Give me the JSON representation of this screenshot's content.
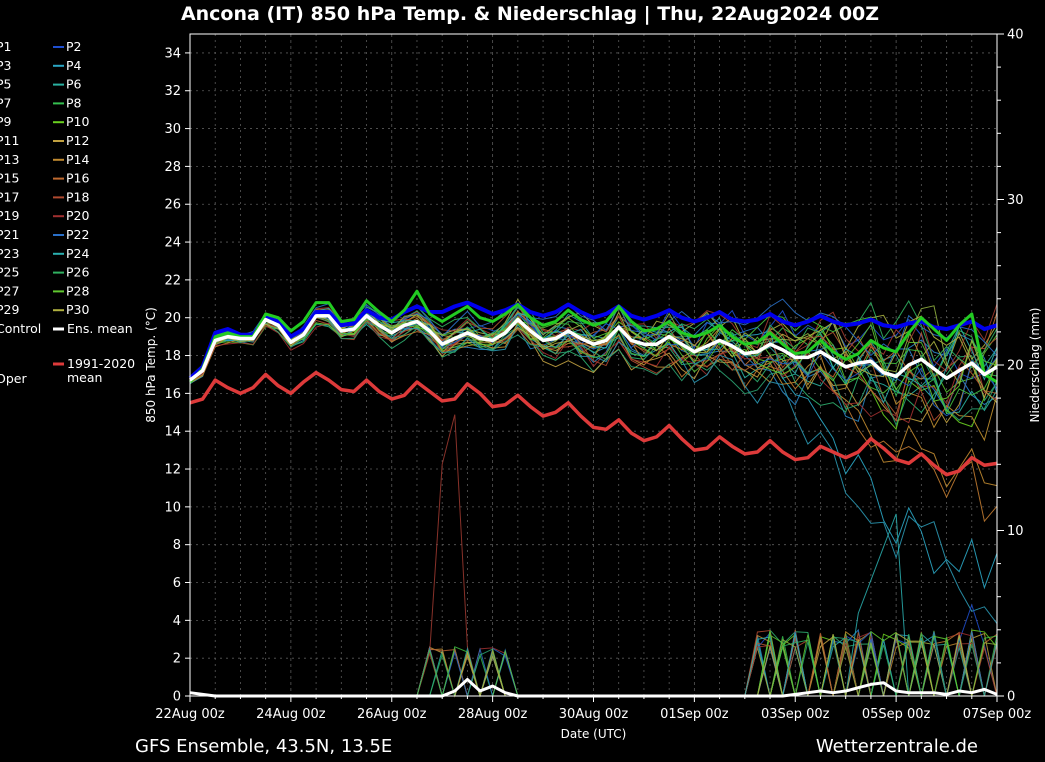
{
  "title": "Ancona  (IT)  850 hPa Temp. & Niederschlag | Thu, 22Aug2024 00Z",
  "footer_left": "GFS Ensemble, 43.5N, 13.5E",
  "footer_right": "Wetterzentrale.de",
  "colors": {
    "background": "#000000",
    "axes": "#ffffff",
    "grid": "#5a5a5a",
    "ens_mean": "#ffffff",
    "control": "#0000ee",
    "oper": "#22cc22",
    "climate_mean": "#dd3a3a"
  },
  "chart_data": {
    "type": "line",
    "xlabel": "Date (UTC)",
    "ylabel": "850 hPa Temp. (°C)",
    "y2label": "Niederschlag (mm)",
    "x_start": "22Aug2024 00Z",
    "x_end": "07Sep2024 00Z",
    "x_step_hours": 6,
    "ylim": [
      0,
      35
    ],
    "y2lim": [
      0,
      40
    ],
    "grid": true,
    "xticks": [
      "22Aug 00z",
      "24Aug 00z",
      "26Aug 00z",
      "28Aug 00z",
      "30Aug 00z",
      "01Sep 00z",
      "03Sep 00z",
      "05Sep 00z",
      "07Sep 00z"
    ],
    "yticks": [
      0,
      2,
      4,
      6,
      8,
      10,
      12,
      14,
      16,
      18,
      20,
      22,
      24,
      26,
      28,
      30,
      32,
      34
    ],
    "y2ticks": [
      0,
      10,
      20,
      30,
      40
    ],
    "legend": {
      "placement": "left",
      "entries": [
        {
          "label": "P1",
          "color": "#2a7fd0"
        },
        {
          "label": "P2",
          "color": "#1f4fd0"
        },
        {
          "label": "P3",
          "color": "#2a86c4"
        },
        {
          "label": "P4",
          "color": "#2aa6c4"
        },
        {
          "label": "P5",
          "color": "#2aa3a0"
        },
        {
          "label": "P6",
          "color": "#2ab0a0"
        },
        {
          "label": "P7",
          "color": "#2fb070"
        },
        {
          "label": "P8",
          "color": "#35c050"
        },
        {
          "label": "P9",
          "color": "#55c030"
        },
        {
          "label": "P10",
          "color": "#6ad020"
        },
        {
          "label": "P11",
          "color": "#a8b040"
        },
        {
          "label": "P12",
          "color": "#c0a040"
        },
        {
          "label": "P13",
          "color": "#c09030"
        },
        {
          "label": "P14",
          "color": "#c08a30"
        },
        {
          "label": "P15",
          "color": "#c07a30"
        },
        {
          "label": "P16",
          "color": "#c06a30"
        },
        {
          "label": "P17",
          "color": "#b05a30"
        },
        {
          "label": "P18",
          "color": "#b04a30"
        },
        {
          "label": "P19",
          "color": "#a03a30"
        },
        {
          "label": "P20",
          "color": "#a03030"
        },
        {
          "label": "P21",
          "color": "#2060c0"
        },
        {
          "label": "P22",
          "color": "#2a70c8"
        },
        {
          "label": "P23",
          "color": "#2a96b0"
        },
        {
          "label": "P24",
          "color": "#2ab0b0"
        },
        {
          "label": "P25",
          "color": "#2aa070"
        },
        {
          "label": "P26",
          "color": "#30b060"
        },
        {
          "label": "P27",
          "color": "#40c040"
        },
        {
          "label": "P28",
          "color": "#60c830"
        },
        {
          "label": "P29",
          "color": "#90b040"
        },
        {
          "label": "P30",
          "color": "#b0b040"
        },
        {
          "label": "Control",
          "color": "#0000ee"
        },
        {
          "label": "Ens. mean",
          "color": "#ffffff"
        },
        {
          "label": "1991-2020 mean",
          "color": "#dd3a3a"
        },
        {
          "label": "Oper",
          "color": "#22cc22"
        }
      ]
    },
    "series": [
      {
        "name": "Ens. mean",
        "axis": "temp",
        "values": [
          16.7,
          17.2,
          18.8,
          19.0,
          18.9,
          18.9,
          19.9,
          19.6,
          18.7,
          19.1,
          20.1,
          20.1,
          19.3,
          19.4,
          20.1,
          19.6,
          19.2,
          19.6,
          19.8,
          19.3,
          18.6,
          18.9,
          19.2,
          18.9,
          18.8,
          19.2,
          19.9,
          19.3,
          18.8,
          18.9,
          19.3,
          18.9,
          18.6,
          18.8,
          19.5,
          18.8,
          18.6,
          18.6,
          19.0,
          18.6,
          18.2,
          18.5,
          18.8,
          18.5,
          18.1,
          18.2,
          18.6,
          18.3,
          17.9,
          17.9,
          18.2,
          17.8,
          17.4,
          17.6,
          17.7,
          17.1,
          16.9,
          17.5,
          17.8,
          17.3,
          16.8,
          17.2,
          17.6,
          17.0,
          17.4
        ]
      },
      {
        "name": "Control",
        "axis": "temp",
        "values": [
          16.8,
          17.4,
          19.2,
          19.4,
          19.1,
          19.1,
          20.0,
          19.8,
          19.0,
          19.4,
          20.3,
          20.3,
          19.6,
          19.7,
          20.4,
          20.0,
          19.9,
          20.3,
          20.6,
          20.3,
          20.3,
          20.6,
          20.8,
          20.5,
          20.2,
          20.4,
          20.7,
          20.3,
          20.1,
          20.3,
          20.7,
          20.3,
          20.0,
          20.2,
          20.6,
          20.1,
          19.9,
          20.1,
          20.4,
          20.0,
          19.8,
          20.0,
          20.3,
          19.9,
          19.8,
          19.9,
          20.2,
          19.8,
          19.6,
          19.8,
          20.1,
          19.8,
          19.6,
          19.7,
          19.9,
          19.6,
          19.5,
          19.7,
          19.8,
          19.5,
          19.4,
          19.6,
          19.8,
          19.4,
          19.6
        ]
      },
      {
        "name": "Oper",
        "axis": "temp",
        "values": [
          16.6,
          17.3,
          19.0,
          19.2,
          19.0,
          19.0,
          20.2,
          20.0,
          19.3,
          19.8,
          20.8,
          20.8,
          19.8,
          19.9,
          20.9,
          20.3,
          19.8,
          20.4,
          21.4,
          20.2,
          19.8,
          20.2,
          20.6,
          20.0,
          19.8,
          20.2,
          20.7,
          20.0,
          19.6,
          19.8,
          20.4,
          19.9,
          19.6,
          19.8,
          20.6,
          19.8,
          19.3,
          19.4,
          19.8,
          19.2,
          19.0,
          19.2,
          19.6,
          19.0,
          18.6,
          18.7,
          19.2,
          18.6,
          18.1,
          18.2,
          18.8,
          18.2,
          17.8,
          18.1,
          18.8,
          18.4,
          18.2,
          19.2,
          20.0,
          19.4,
          18.8,
          19.6,
          20.2,
          17.0,
          16.6
        ]
      },
      {
        "name": "1991-2020 mean",
        "axis": "temp",
        "values": [
          15.5,
          15.7,
          16.7,
          16.3,
          16.0,
          16.3,
          17.0,
          16.4,
          16.0,
          16.6,
          17.1,
          16.7,
          16.2,
          16.1,
          16.7,
          16.1,
          15.7,
          15.9,
          16.6,
          16.1,
          15.6,
          15.7,
          16.5,
          16.0,
          15.3,
          15.4,
          15.9,
          15.3,
          14.8,
          15.0,
          15.5,
          14.8,
          14.2,
          14.1,
          14.6,
          13.9,
          13.5,
          13.7,
          14.3,
          13.6,
          13.0,
          13.1,
          13.7,
          13.2,
          12.8,
          12.9,
          13.5,
          12.9,
          12.5,
          12.6,
          13.2,
          12.9,
          12.6,
          12.9,
          13.6,
          13.1,
          12.5,
          12.3,
          12.8,
          12.2,
          11.7,
          11.9,
          12.6,
          12.2,
          12.3
        ]
      },
      {
        "name": "Ens. mean precip",
        "axis": "precip",
        "values": [
          0.2,
          0.1,
          0,
          0,
          0,
          0,
          0,
          0,
          0,
          0,
          0,
          0,
          0,
          0,
          0,
          0,
          0,
          0,
          0,
          0,
          0,
          0.3,
          1.0,
          0.3,
          0.6,
          0.2,
          0,
          0,
          0,
          0,
          0,
          0,
          0,
          0,
          0,
          0,
          0,
          0,
          0,
          0,
          0,
          0,
          0,
          0,
          0,
          0,
          0,
          0,
          0.1,
          0.2,
          0.3,
          0.2,
          0.3,
          0.5,
          0.7,
          0.8,
          0.3,
          0.2,
          0.2,
          0.2,
          0.1,
          0.3,
          0.2,
          0.4,
          0.1
        ]
      }
    ]
  }
}
